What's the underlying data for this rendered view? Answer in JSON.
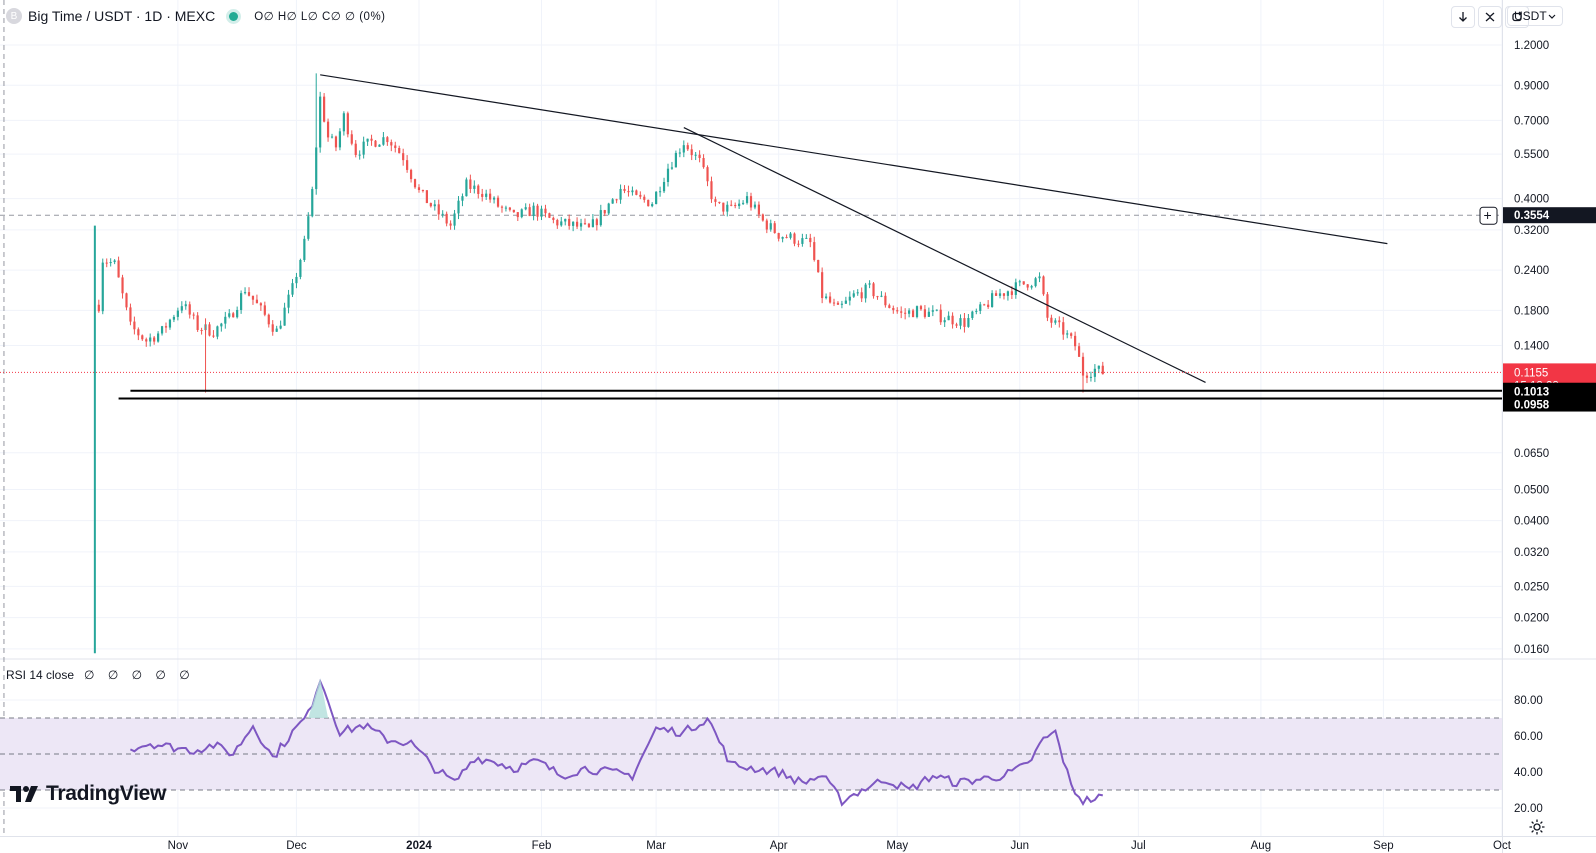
{
  "header": {
    "symbol_icon": "B",
    "title": "Big Time / USDT · 1D · MEXC",
    "ohlc": "O∅ H∅ L∅ C∅ ∅ (0%)"
  },
  "toolbar": {
    "currency": "USDT",
    "icons": [
      "download-arrow-icon",
      "collapse-icon",
      "refresh-icon"
    ]
  },
  "rsi_panel": {
    "label": "RSI 14 close",
    "values": "∅ ∅ ∅ ∅ ∅"
  },
  "branding": {
    "name": "TradingView"
  },
  "colors": {
    "up": "#26a69a",
    "down": "#ef5350",
    "rsi_line": "#7e57c2",
    "rsi_band": "#ede7f6",
    "price_tag": "#f23645",
    "crosshair_tag": "#131722"
  },
  "chart_data": [
    {
      "type": "candlestick",
      "scale": "log",
      "y_ticks": [
        "1.2000",
        "0.9000",
        "0.7000",
        "0.5500",
        "0.4000",
        "0.3200",
        "0.2400",
        "0.1800",
        "0.1400",
        "0.0650",
        "0.0500",
        "0.0400",
        "0.0320",
        "0.0250",
        "0.0200",
        "0.0160"
      ],
      "y_tick_values": [
        1.2,
        0.9,
        0.7,
        0.55,
        0.4,
        0.32,
        0.24,
        0.18,
        0.14,
        0.065,
        0.05,
        0.04,
        0.032,
        0.025,
        0.02,
        0.016
      ],
      "x_labels": [
        "Nov",
        "Dec",
        "2024",
        "Feb",
        "Mar",
        "Apr",
        "May",
        "Jun",
        "Jul",
        "Aug",
        "Sep",
        "Oct"
      ],
      "x_label_dates": [
        "2023-11-01",
        "2023-12-01",
        "2024-01-01",
        "2024-02-01",
        "2024-03-01",
        "2024-04-01",
        "2024-05-01",
        "2024-06-01",
        "2024-07-01",
        "2024-08-01",
        "2024-09-01",
        "2024-10-01"
      ],
      "x_range": [
        "2023-09-17",
        "2024-10-01"
      ],
      "grid": true,
      "markers": {
        "last_price": "0.1155",
        "countdown": "15:18:28",
        "crosshair_price": "0.3554",
        "support_1": "0.1013",
        "support_2": "0.0958"
      },
      "marker_values": {
        "last_price": 0.1155,
        "crosshair_price": 0.3554,
        "support_1": 0.1013,
        "support_2": 0.0958
      },
      "crosshair_date": "2023-09-18",
      "listing_date": "2023-10-11",
      "listing_low": 0.0155,
      "trendlines": [
        {
          "from": [
            "2023-12-07",
            0.97
          ],
          "to": [
            "2024-09-02",
            0.29
          ]
        },
        {
          "from": [
            "2024-03-08",
            0.665
          ],
          "to": [
            "2024-07-18",
            0.1075
          ]
        }
      ],
      "support_lines": [
        {
          "from": "2023-10-20",
          "to": "2024-10-01",
          "value": 0.1013
        },
        {
          "from": "2023-10-17",
          "to": "2024-10-01",
          "value": 0.0958
        }
      ],
      "close_path": [
        [
          "2023-10-11",
          0.135
        ],
        [
          "2023-10-13",
          0.26
        ],
        [
          "2023-10-16",
          0.25
        ],
        [
          "2023-10-20",
          0.16
        ],
        [
          "2023-10-24",
          0.145
        ],
        [
          "2023-10-28",
          0.155
        ],
        [
          "2023-11-02",
          0.19
        ],
        [
          "2023-11-06",
          0.16
        ],
        [
          "2023-11-10",
          0.155
        ],
        [
          "2023-11-14",
          0.17
        ],
        [
          "2023-11-18",
          0.21
        ],
        [
          "2023-11-22",
          0.18
        ],
        [
          "2023-11-26",
          0.155
        ],
        [
          "2023-11-30",
          0.21
        ],
        [
          "2023-12-03",
          0.29
        ],
        [
          "2023-12-05",
          0.42
        ],
        [
          "2023-12-07",
          0.82
        ],
        [
          "2023-12-09",
          0.62
        ],
        [
          "2023-12-11",
          0.58
        ],
        [
          "2023-12-13",
          0.72
        ],
        [
          "2023-12-16",
          0.56
        ],
        [
          "2023-12-20",
          0.6
        ],
        [
          "2023-12-24",
          0.62
        ],
        [
          "2023-12-28",
          0.54
        ],
        [
          "2024-01-01",
          0.42
        ],
        [
          "2024-01-05",
          0.37
        ],
        [
          "2024-01-09",
          0.33
        ],
        [
          "2024-01-13",
          0.44
        ],
        [
          "2024-01-17",
          0.42
        ],
        [
          "2024-01-21",
          0.38
        ],
        [
          "2024-01-25",
          0.35
        ],
        [
          "2024-01-30",
          0.37
        ],
        [
          "2024-02-04",
          0.34
        ],
        [
          "2024-02-09",
          0.33
        ],
        [
          "2024-02-13",
          0.32
        ],
        [
          "2024-02-17",
          0.37
        ],
        [
          "2024-02-21",
          0.43
        ],
        [
          "2024-02-25",
          0.4
        ],
        [
          "2024-02-29",
          0.39
        ],
        [
          "2024-03-04",
          0.5
        ],
        [
          "2024-03-08",
          0.6
        ],
        [
          "2024-03-12",
          0.52
        ],
        [
          "2024-03-16",
          0.38
        ],
        [
          "2024-03-20",
          0.37
        ],
        [
          "2024-03-24",
          0.4
        ],
        [
          "2024-03-28",
          0.34
        ],
        [
          "2024-04-01",
          0.31
        ],
        [
          "2024-04-05",
          0.3
        ],
        [
          "2024-04-09",
          0.29
        ],
        [
          "2024-04-12",
          0.2
        ],
        [
          "2024-04-16",
          0.18
        ],
        [
          "2024-04-20",
          0.2
        ],
        [
          "2024-04-24",
          0.21
        ],
        [
          "2024-04-28",
          0.19
        ],
        [
          "2024-05-02",
          0.175
        ],
        [
          "2024-05-06",
          0.18
        ],
        [
          "2024-05-10",
          0.175
        ],
        [
          "2024-05-14",
          0.17
        ],
        [
          "2024-05-18",
          0.165
        ],
        [
          "2024-05-22",
          0.18
        ],
        [
          "2024-05-26",
          0.2
        ],
        [
          "2024-05-30",
          0.21
        ],
        [
          "2024-06-03",
          0.22
        ],
        [
          "2024-06-06",
          0.225
        ],
        [
          "2024-06-08",
          0.17
        ],
        [
          "2024-06-12",
          0.155
        ],
        [
          "2024-06-15",
          0.14
        ],
        [
          "2024-06-17",
          0.115
        ],
        [
          "2024-06-20",
          0.118
        ],
        [
          "2024-06-22",
          0.1155
        ]
      ]
    },
    {
      "type": "line",
      "name": "RSI 14 close",
      "y_ticks": [
        "80.00",
        "60.00",
        "40.00",
        "20.00"
      ],
      "y_tick_values": [
        80,
        60,
        40,
        20
      ],
      "bands": [
        70,
        50,
        30
      ],
      "x": [
        "2023-10-20",
        "2023-10-25",
        "2023-10-30",
        "2023-11-05",
        "2023-11-10",
        "2023-11-15",
        "2023-11-20",
        "2023-11-25",
        "2023-11-30",
        "2023-12-04",
        "2023-12-07",
        "2023-12-12",
        "2023-12-18",
        "2023-12-24",
        "2023-12-30",
        "2024-01-05",
        "2024-01-10",
        "2024-01-15",
        "2024-01-20",
        "2024-01-25",
        "2024-01-31",
        "2024-02-06",
        "2024-02-12",
        "2024-02-18",
        "2024-02-24",
        "2024-03-01",
        "2024-03-08",
        "2024-03-14",
        "2024-03-20",
        "2024-03-26",
        "2024-04-01",
        "2024-04-07",
        "2024-04-12",
        "2024-04-17",
        "2024-04-22",
        "2024-04-28",
        "2024-05-04",
        "2024-05-10",
        "2024-05-16",
        "2024-05-22",
        "2024-05-28",
        "2024-06-03",
        "2024-06-07",
        "2024-06-10",
        "2024-06-14",
        "2024-06-17",
        "2024-06-22"
      ],
      "y": [
        53,
        56,
        54,
        52,
        55,
        50,
        66,
        48,
        62,
        72,
        92,
        62,
        66,
        58,
        56,
        42,
        34,
        48,
        46,
        42,
        46,
        38,
        42,
        40,
        38,
        64,
        62,
        70,
        44,
        42,
        40,
        34,
        38,
        24,
        30,
        36,
        30,
        38,
        34,
        36,
        38,
        44,
        58,
        62,
        32,
        24,
        26
      ]
    }
  ]
}
